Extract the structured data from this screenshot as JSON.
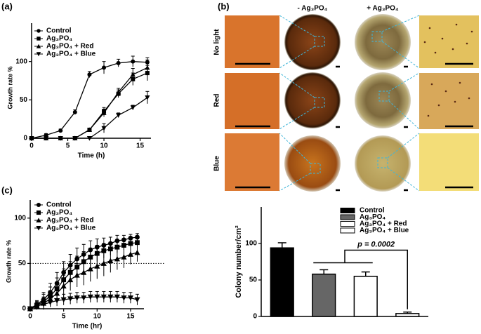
{
  "panels": [
    "(a)",
    "(b)",
    "(c)"
  ],
  "photo_grid": {
    "columns": [
      "- Ag₃PO₄",
      "+ Ag₃PO₄"
    ],
    "rows": [
      "No light",
      "Red",
      "Blue"
    ]
  },
  "chart_data": [
    {
      "type": "line",
      "xlabel": "Time (h)",
      "ylabel": "Growth rate %",
      "x": [
        0,
        2,
        4,
        6,
        8,
        10,
        12,
        14,
        16
      ],
      "xlim": [
        0,
        16.5
      ],
      "xticks": [
        0,
        5,
        10,
        15
      ],
      "ylim": [
        0,
        150
      ],
      "yticks": [
        0,
        50,
        100
      ],
      "series": [
        {
          "name": "Control",
          "marker": "circle",
          "color": "#000000",
          "values": [
            0,
            4,
            10,
            34,
            83,
            92,
            98,
            100,
            99
          ],
          "errors": [
            1,
            2,
            2,
            3,
            4,
            8,
            5,
            7,
            6
          ]
        },
        {
          "name": "Ag₃PO₄",
          "marker": "square",
          "color": "#000000",
          "values": [
            0,
            0,
            0,
            0,
            11,
            35,
            58,
            77,
            85
          ],
          "errors": [
            0,
            0,
            0,
            1,
            2,
            5,
            5,
            8,
            10
          ]
        },
        {
          "name": "Ag₃PO₄ + Red",
          "marker": "triangle-up",
          "color": "#000000",
          "values": [
            0,
            0,
            0,
            0,
            11,
            33,
            60,
            83,
            92
          ],
          "errors": [
            0,
            0,
            0,
            1,
            2,
            5,
            5,
            8,
            10
          ]
        },
        {
          "name": "Ag₃PO₄ + Blue",
          "marker": "triangle-down",
          "color": "#000000",
          "values": [
            0,
            0,
            0,
            0,
            0,
            13,
            30,
            40,
            53
          ],
          "errors": [
            0,
            0,
            0,
            0,
            1,
            6,
            3,
            3,
            8
          ]
        }
      ]
    },
    {
      "type": "line",
      "xlabel": "Time (hr)",
      "ylabel": "Growth rate %",
      "x": [
        0,
        1,
        2,
        3,
        4,
        5,
        6,
        7,
        8,
        9,
        10,
        11,
        12,
        13,
        14,
        15,
        16
      ],
      "xlim": [
        0,
        17
      ],
      "xticks": [
        0,
        5,
        10,
        15
      ],
      "ylim": [
        0,
        120
      ],
      "yticks": [
        0,
        50,
        100
      ],
      "hline": 50,
      "series": [
        {
          "name": "Control",
          "marker": "circle",
          "color": "#000000",
          "values": [
            0,
            5,
            10,
            18,
            28,
            40,
            48,
            55,
            60,
            65,
            68,
            70,
            72,
            75,
            76,
            78,
            79
          ],
          "errors": [
            0,
            4,
            8,
            10,
            12,
            12,
            12,
            12,
            11,
            10,
            9,
            8,
            7,
            6,
            5,
            4,
            4
          ]
        },
        {
          "name": "Ag₃PO₄",
          "marker": "square",
          "color": "#000000",
          "values": [
            0,
            4,
            8,
            14,
            22,
            32,
            40,
            46,
            52,
            57,
            61,
            64,
            66,
            68,
            70,
            72,
            73
          ],
          "errors": [
            0,
            4,
            8,
            10,
            12,
            12,
            12,
            12,
            11,
            10,
            9,
            8,
            7,
            6,
            5,
            4,
            4
          ]
        },
        {
          "name": "Ag₃PO₄ + Red",
          "marker": "triangle-up",
          "color": "#000000",
          "values": [
            0,
            3,
            6,
            11,
            17,
            25,
            32,
            37,
            40,
            44,
            47,
            50,
            53,
            55,
            57,
            60,
            62
          ],
          "errors": [
            0,
            4,
            7,
            9,
            10,
            12,
            12,
            13,
            14,
            14,
            14,
            14,
            13,
            12,
            12,
            11,
            10
          ]
        },
        {
          "name": "Ag₃PO₄ + Blue",
          "marker": "triangle-down",
          "color": "#000000",
          "values": [
            0,
            3,
            5,
            7,
            9,
            10,
            11,
            12,
            12,
            13,
            13,
            13,
            13,
            13,
            12,
            12,
            10
          ],
          "errors": [
            0,
            3,
            4,
            5,
            6,
            6,
            6,
            6,
            6,
            6,
            6,
            6,
            6,
            6,
            6,
            6,
            6
          ]
        }
      ]
    },
    {
      "type": "bar",
      "ylabel": "Colony number/cm²",
      "categories": [
        "Control",
        "Ag₃PO₄",
        "Ag₃PO₄ + Red",
        "Ag₃PO₄ + Blue"
      ],
      "values": [
        94,
        58,
        55,
        4
      ],
      "errors": [
        7,
        6,
        6,
        2
      ],
      "colors": [
        "#000000",
        "#666666",
        "#ffffff",
        "#ffffff"
      ],
      "ylim": [
        0,
        150
      ],
      "yticks": [
        0,
        50,
        100
      ],
      "annotation": "p = 0.0002"
    }
  ]
}
